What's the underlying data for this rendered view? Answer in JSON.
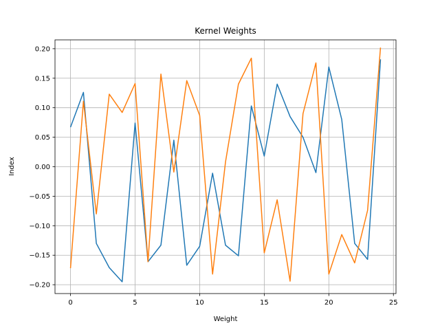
{
  "chart_data": {
    "type": "line",
    "title": "Kernel Weights",
    "xlabel": "Weight",
    "ylabel": "Index",
    "xlim": [
      -1.2,
      25.2
    ],
    "ylim": [
      -0.215,
      0.215
    ],
    "grid": true,
    "x_ticks": [
      0,
      5,
      10,
      15,
      20,
      25
    ],
    "y_ticks": [
      -0.2,
      -0.15,
      -0.1,
      -0.05,
      0.0,
      0.05,
      0.1,
      0.15,
      0.2
    ],
    "x_tick_labels": [
      "0",
      "5",
      "10",
      "15",
      "20",
      "25"
    ],
    "y_tick_labels": [
      "−0.20",
      "−0.15",
      "−0.10",
      "−0.05",
      "0.00",
      "0.05",
      "0.10",
      "0.15",
      "0.20"
    ],
    "x": [
      0,
      1,
      2,
      3,
      4,
      5,
      6,
      7,
      8,
      9,
      10,
      11,
      12,
      13,
      14,
      15,
      16,
      17,
      18,
      19,
      20,
      21,
      22,
      23,
      24
    ],
    "series": [
      {
        "color": "#1f77b4",
        "values": [
          0.067,
          0.126,
          -0.13,
          -0.171,
          -0.195,
          0.074,
          -0.161,
          -0.133,
          0.045,
          -0.167,
          -0.135,
          -0.011,
          -0.133,
          -0.151,
          0.103,
          0.018,
          0.14,
          0.085,
          0.05,
          -0.01,
          0.169,
          0.08,
          -0.13,
          -0.157,
          0.182
        ]
      },
      {
        "color": "#ff7f0e",
        "values": [
          -0.172,
          0.111,
          -0.08,
          0.123,
          0.092,
          0.141,
          -0.161,
          0.157,
          -0.009,
          0.146,
          0.087,
          -0.182,
          0.008,
          0.14,
          0.184,
          -0.146,
          -0.056,
          -0.194,
          0.09,
          0.176,
          -0.182,
          -0.115,
          -0.163,
          -0.074,
          0.202
        ]
      }
    ]
  }
}
